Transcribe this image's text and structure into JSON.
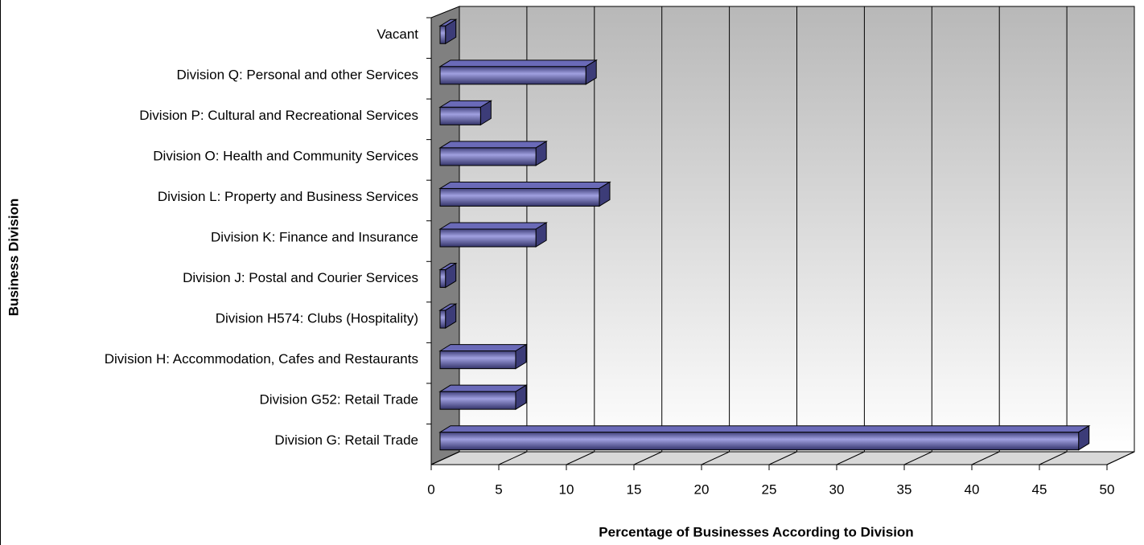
{
  "chart_data": {
    "type": "bar3d_horizontal",
    "xlabel": "Percentage of Businesses According to Division",
    "ylabel": "Business Division",
    "categories": [
      "Vacant",
      "Division Q: Personal and other Services",
      "Division P: Cultural and Recreational Services",
      "Division O: Health and Community Services",
      "Division L: Property and Business Services",
      "Division K: Finance and Insurance",
      "Division J: Postal and Courier Services",
      "Division H574: Clubs (Hospitality)",
      "Division H: Accommodation, Cafes and Restaurants",
      "Division G52: Retail Trade",
      "Division G: Retail Trade"
    ],
    "values": [
      0.4,
      10.8,
      3.0,
      7.1,
      11.8,
      7.1,
      0.4,
      0.4,
      5.6,
      5.6,
      47.3
    ],
    "color": "#6a6ab8",
    "xlim": [
      0,
      50
    ],
    "xticks": [
      0,
      5,
      10,
      15,
      20,
      25,
      30,
      35,
      40,
      45,
      50
    ],
    "grid": true
  }
}
